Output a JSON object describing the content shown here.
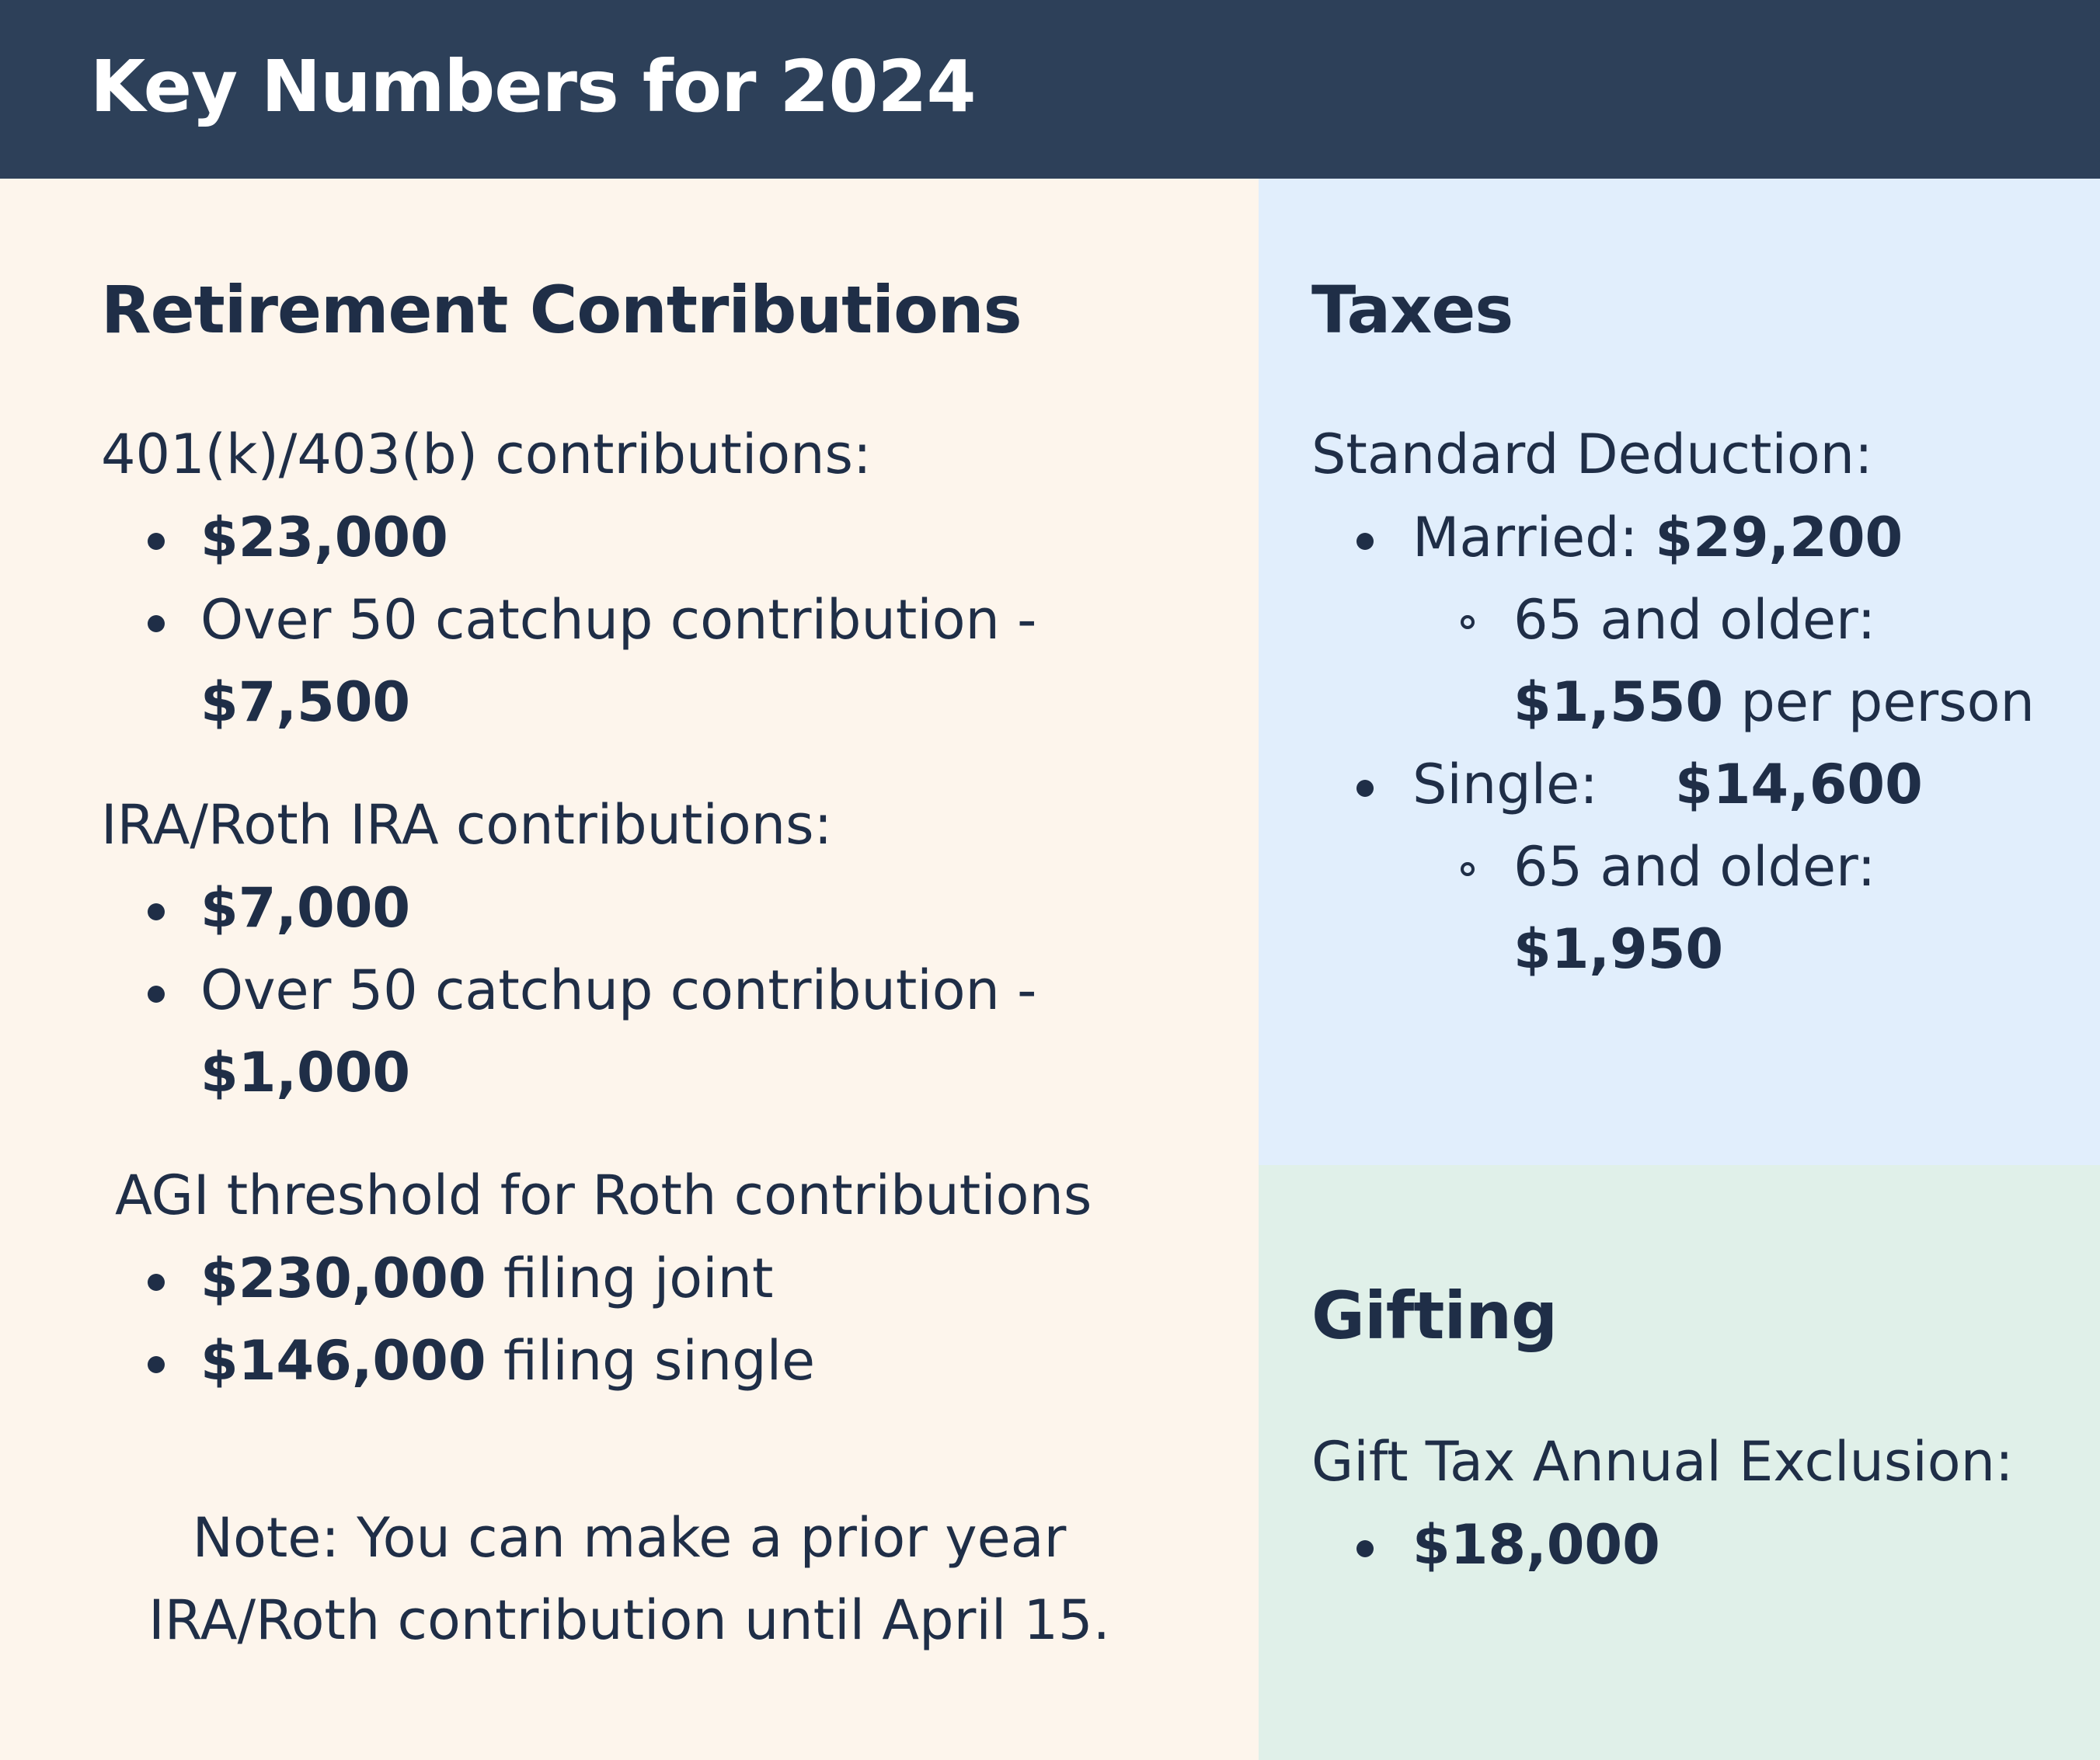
{
  "header": {
    "title": "Key Numbers for 2024"
  },
  "retirement": {
    "title": "Retirement Contributions",
    "k401": {
      "label": "401(k)/403(b) contributions:",
      "limit": "$23,000",
      "catchup_text": "Over 50 catchup contribution -",
      "catchup_value": "$7,500"
    },
    "ira": {
      "label": "IRA/Roth IRA contributions:",
      "limit": "$7,000",
      "catchup_text": "Over 50 catchup contribution -",
      "catchup_value": "$1,000"
    },
    "agi": {
      "label": "AGI threshold for Roth contributions",
      "joint_value": "$230,000",
      "joint_text": "filing joint",
      "single_value": "$146,000",
      "single_text": "filing single"
    },
    "note": {
      "line1": "Note: You can make a prior year",
      "line2": "IRA/Roth contribution until April 15."
    }
  },
  "taxes": {
    "title": "Taxes",
    "label": "Standard Deduction:",
    "married_label": "Married:",
    "married_value": "$29,200",
    "married_older_label": "65 and older:",
    "married_older_value": "$1,550",
    "married_older_suffix": "per person",
    "single_label": "Single:",
    "single_value": "$14,600",
    "single_older_label": "65 and older:",
    "single_older_value": "$1,950"
  },
  "gifting": {
    "title": "Gifting",
    "label": "Gift Tax Annual Exclusion:",
    "value": "$18,000"
  }
}
